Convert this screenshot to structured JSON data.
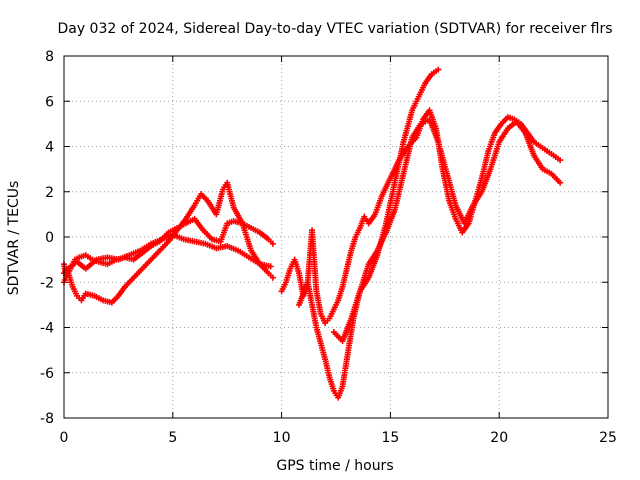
{
  "chart_data": {
    "type": "scatter",
    "title": "Day 032 of 2024, Sidereal Day-to-day VTEC variation (SDTVAR) for receiver flrs",
    "xlabel": "GPS time / hours",
    "ylabel": "SDTVAR / TECUs",
    "xlim": [
      0,
      25
    ],
    "ylim": [
      -8,
      8
    ],
    "x_ticks": [
      "0",
      "5",
      "10",
      "15",
      "20",
      "25"
    ],
    "y_ticks": [
      "-8",
      "-6",
      "-4",
      "-2",
      "0",
      "2",
      "4",
      "6",
      "8"
    ],
    "grid": true,
    "legend": "none",
    "marker": "+",
    "series_color": "#ff0000",
    "series": [
      {
        "x": [
          0.0,
          0.1,
          0.3,
          0.5,
          0.7,
          1.0,
          1.3,
          1.6,
          2.0,
          2.4,
          2.8,
          3.2,
          3.6,
          4.0,
          4.4,
          4.8,
          5.2,
          5.6,
          6.0,
          6.4,
          6.8,
          7.2,
          7.5,
          7.8,
          8.2,
          8.6,
          9.0,
          9.4,
          9.6
        ],
        "y": [
          -1.2,
          -1.8,
          -1.4,
          -1.0,
          -0.9,
          -0.8,
          -1.0,
          -1.1,
          -1.2,
          -1.0,
          -0.9,
          -1.0,
          -0.7,
          -0.4,
          -0.2,
          0.2,
          0.4,
          0.6,
          0.8,
          0.3,
          -0.1,
          -0.2,
          0.6,
          0.7,
          0.6,
          0.4,
          0.2,
          -0.1,
          -0.3
        ]
      },
      {
        "x": [
          0.0,
          0.2,
          0.4,
          0.6,
          0.8,
          1.0,
          1.4,
          1.8,
          2.2,
          2.5,
          2.8,
          3.2,
          3.6,
          4.0,
          4.4,
          4.8,
          5.2,
          5.6,
          6.0,
          6.3,
          6.6,
          7.0,
          7.3,
          7.5,
          7.8,
          8.2,
          8.6,
          9.0,
          9.4,
          9.6
        ],
        "y": [
          -2.0,
          -1.6,
          -2.2,
          -2.6,
          -2.8,
          -2.5,
          -2.6,
          -2.8,
          -2.9,
          -2.6,
          -2.2,
          -1.8,
          -1.4,
          -1.0,
          -0.6,
          -0.2,
          0.3,
          0.8,
          1.4,
          1.9,
          1.6,
          1.0,
          2.1,
          2.4,
          1.3,
          0.6,
          -0.6,
          -1.2,
          -1.6,
          -1.8
        ]
      },
      {
        "x": [
          0.0,
          0.3,
          0.6,
          1.0,
          1.5,
          2.0,
          2.5,
          3.0,
          3.5,
          4.0,
          4.5,
          5.0,
          5.5,
          6.0,
          6.5,
          7.0,
          7.5,
          8.0,
          8.5,
          9.0,
          9.5
        ],
        "y": [
          -1.6,
          -1.3,
          -1.1,
          -1.4,
          -1.0,
          -0.9,
          -1.0,
          -0.8,
          -0.6,
          -0.3,
          -0.1,
          0.1,
          -0.1,
          -0.2,
          -0.3,
          -0.5,
          -0.4,
          -0.6,
          -0.9,
          -1.2,
          -1.3
        ]
      },
      {
        "x": [
          10.0,
          10.2,
          10.4,
          10.6,
          10.8,
          11.0,
          11.2,
          11.4,
          11.6,
          11.8,
          12.0,
          12.2,
          12.4,
          12.6,
          12.8,
          13.0,
          13.2,
          13.4,
          13.6,
          13.8,
          14.0,
          14.3,
          14.6,
          15.0,
          15.4,
          15.8,
          16.2,
          16.5,
          16.8,
          17.1,
          17.4,
          17.7,
          18.0,
          18.3,
          18.6,
          18.9,
          19.2,
          19.5,
          19.8,
          20.1,
          20.4,
          20.7,
          21.0,
          21.3,
          21.6,
          21.9,
          22.2,
          22.5,
          22.8
        ],
        "y": [
          -2.4,
          -2.0,
          -1.4,
          -1.0,
          -1.6,
          -2.6,
          -2.0,
          0.3,
          -2.4,
          -3.4,
          -3.8,
          -3.6,
          -3.2,
          -2.8,
          -2.2,
          -1.4,
          -0.6,
          0.0,
          0.4,
          0.9,
          0.6,
          1.0,
          1.8,
          2.6,
          3.4,
          4.0,
          4.4,
          5.2,
          5.6,
          4.8,
          3.0,
          1.6,
          0.8,
          0.2,
          0.6,
          1.6,
          2.6,
          3.8,
          4.6,
          5.0,
          5.3,
          5.2,
          5.0,
          4.6,
          4.2,
          4.0,
          3.8,
          3.6,
          3.4
        ]
      },
      {
        "x": [
          10.8,
          11.2,
          11.6,
          12.0,
          12.2,
          12.4,
          12.6,
          12.8,
          13.0,
          13.3,
          13.6,
          14.0,
          14.4,
          14.8,
          15.2,
          15.6,
          16.0,
          16.3,
          16.6,
          16.9,
          17.2
        ],
        "y": [
          -3.0,
          -2.0,
          -4.0,
          -5.4,
          -6.2,
          -6.8,
          -7.1,
          -6.6,
          -5.4,
          -3.6,
          -2.4,
          -1.8,
          -0.8,
          0.6,
          2.4,
          4.2,
          5.6,
          6.2,
          6.8,
          7.2,
          7.4
        ]
      },
      {
        "x": [
          12.4,
          12.8,
          13.2,
          13.6,
          14.0,
          14.4,
          14.8,
          15.2,
          15.6,
          16.0,
          16.4,
          16.8,
          17.2,
          17.6,
          18.0,
          18.4,
          18.8,
          19.2,
          19.6,
          20.0,
          20.4,
          20.8,
          21.2,
          21.6,
          22.0,
          22.4,
          22.8
        ],
        "y": [
          -4.2,
          -4.6,
          -3.6,
          -2.4,
          -1.2,
          -0.6,
          0.2,
          1.2,
          2.8,
          4.4,
          5.0,
          5.2,
          4.2,
          2.8,
          1.4,
          0.6,
          1.4,
          2.0,
          3.0,
          4.2,
          4.8,
          5.1,
          4.6,
          3.6,
          3.0,
          2.8,
          2.4
        ]
      }
    ]
  }
}
